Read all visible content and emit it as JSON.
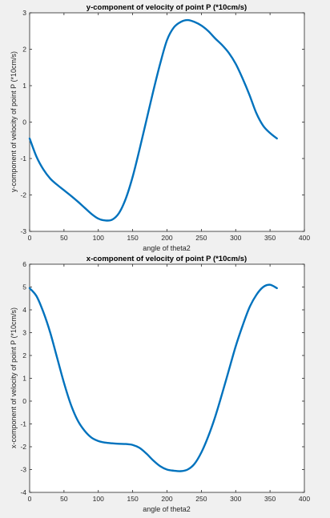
{
  "colors": {
    "series": "#0072BD"
  },
  "chart_data": [
    {
      "type": "line",
      "title": "y-component of velocity of point P (*10cm/s)",
      "xlabel": "angle of theta2",
      "ylabel": "y-component of velocity of point P (*10cm/s)",
      "xlim": [
        0,
        400
      ],
      "ylim": [
        -3,
        3
      ],
      "xticks": [
        0,
        50,
        100,
        150,
        200,
        250,
        300,
        350,
        400
      ],
      "yticks": [
        -3,
        -2,
        -1,
        0,
        1,
        2,
        3
      ],
      "grid": false,
      "series": [
        {
          "x": [
            0,
            10,
            20,
            30,
            40,
            50,
            60,
            70,
            80,
            90,
            100,
            110,
            120,
            130,
            140,
            150,
            160,
            170,
            180,
            190,
            200,
            210,
            220,
            230,
            240,
            250,
            260,
            270,
            280,
            290,
            300,
            310,
            320,
            330,
            340,
            350,
            360
          ],
          "values": [
            -0.45,
            -0.95,
            -1.3,
            -1.55,
            -1.72,
            -1.87,
            -2.02,
            -2.18,
            -2.35,
            -2.52,
            -2.65,
            -2.7,
            -2.68,
            -2.5,
            -2.1,
            -1.5,
            -0.75,
            0.05,
            0.85,
            1.6,
            2.25,
            2.6,
            2.75,
            2.8,
            2.75,
            2.65,
            2.5,
            2.3,
            2.12,
            1.9,
            1.6,
            1.2,
            0.75,
            0.25,
            -0.1,
            -0.3,
            -0.45
          ]
        }
      ]
    },
    {
      "type": "line",
      "title": "x-component of velocity of point P (*10cm/s)",
      "xlabel": "angle of theta2",
      "ylabel": "x-component of velocity of point P (*10cm/s)",
      "xlim": [
        0,
        400
      ],
      "ylim": [
        -4,
        6
      ],
      "xticks": [
        0,
        50,
        100,
        150,
        200,
        250,
        300,
        350,
        400
      ],
      "yticks": [
        -4,
        -3,
        -2,
        -1,
        0,
        1,
        2,
        3,
        4,
        5,
        6
      ],
      "grid": false,
      "series": [
        {
          "x": [
            0,
            10,
            20,
            30,
            40,
            50,
            60,
            70,
            80,
            90,
            100,
            110,
            120,
            130,
            140,
            150,
            160,
            170,
            180,
            190,
            200,
            210,
            220,
            230,
            240,
            250,
            260,
            270,
            280,
            290,
            300,
            310,
            320,
            330,
            340,
            350,
            360
          ],
          "values": [
            4.95,
            4.6,
            3.9,
            3.0,
            1.9,
            0.8,
            -0.15,
            -0.85,
            -1.3,
            -1.6,
            -1.75,
            -1.82,
            -1.85,
            -1.87,
            -1.88,
            -1.92,
            -2.05,
            -2.3,
            -2.6,
            -2.85,
            -3.0,
            -3.05,
            -3.07,
            -3.0,
            -2.75,
            -2.25,
            -1.55,
            -0.7,
            0.3,
            1.35,
            2.4,
            3.3,
            4.1,
            4.65,
            5.0,
            5.1,
            4.95
          ]
        }
      ]
    }
  ]
}
